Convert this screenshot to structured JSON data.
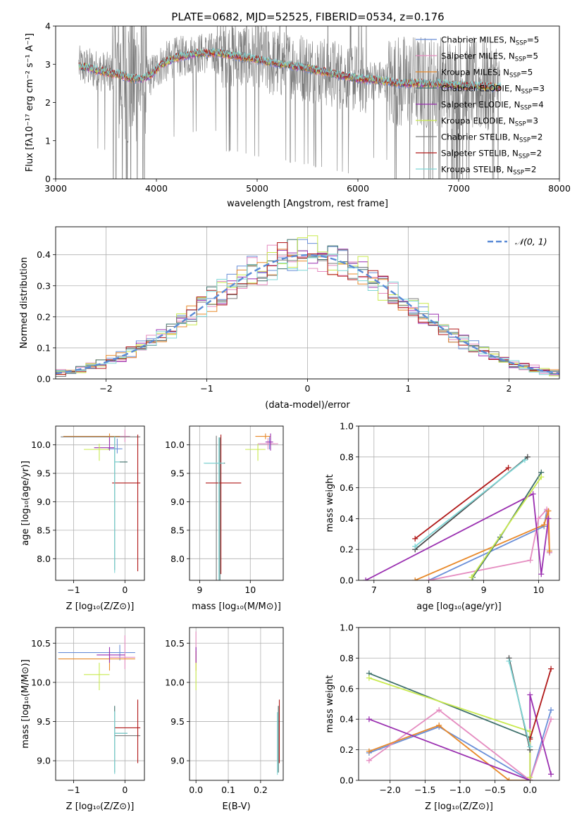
{
  "figure_title": "PLATE=0682, MJD=52525, FIBERID=0534, z=0.176",
  "fit_colors": [
    "#6a8fd8",
    "#e58cc0",
    "#e8892a",
    "#3d6f6a",
    "#9a2fb0",
    "#c9ea4e",
    "#7a7a7a",
    "#b01818",
    "#7fd6d6"
  ],
  "chart_data": [
    {
      "id": "spectrum",
      "type": "line",
      "title": "PLATE=0682, MJD=52525, FIBERID=0534, z=0.176",
      "xlabel": "wavelength [Angstrom, rest frame]",
      "ylabel": "Flux [fλ10⁻¹⁷ erg cm⁻² s⁻¹ A⁻¹]",
      "xlim": [
        3000,
        8000
      ],
      "ylim": [
        0,
        4
      ],
      "xticks": [
        "3000",
        "4000",
        "5000",
        "6000",
        "7000",
        "8000"
      ],
      "yticks": [
        "0",
        "1",
        "2",
        "3",
        "4"
      ],
      "legend_position": "top-right",
      "series": [
        {
          "name": "Chabrier MILES, Nₛₛₚ=5",
          "legend": "Chabrier MILES, N",
          "sub": "SSP",
          "eq": "=5",
          "color": "#6a8fd8"
        },
        {
          "name": "Salpeter MILES, Nₛₛₚ=5",
          "legend": "Salpeter MILES, N",
          "sub": "SSP",
          "eq": "=5",
          "color": "#e58cc0"
        },
        {
          "name": "Kroupa MILES, Nₛₛₚ=5",
          "legend": "Kroupa MILES, N",
          "sub": "SSP",
          "eq": "=5",
          "color": "#e8892a"
        },
        {
          "name": "Chabrier ELODIE, Nₛₛₚ=3",
          "legend": "Chabrier ELODIE, N",
          "sub": "SSP",
          "eq": "=3",
          "color": "#3d6f6a"
        },
        {
          "name": "Salpeter ELODIE, Nₛₛₚ=4",
          "legend": "Salpeter ELODIE, N",
          "sub": "SSP",
          "eq": "=4",
          "color": "#9a2fb0"
        },
        {
          "name": "Kroupa ELODIE, Nₛₛₚ=3",
          "legend": "Kroupa ELODIE, N",
          "sub": "SSP",
          "eq": "=3",
          "color": "#c9ea4e"
        },
        {
          "name": "Chabrier STELIB, Nₛₛₚ=2",
          "legend": "Chabrier STELIB, N",
          "sub": "SSP",
          "eq": "=2",
          "color": "#7a7a7a"
        },
        {
          "name": "Salpeter STELIB, Nₛₛₚ=2",
          "legend": "Salpeter STELIB, N",
          "sub": "SSP",
          "eq": "=2",
          "color": "#b01818"
        },
        {
          "name": "Kroupa STELIB, Nₛₛₚ=2",
          "legend": "Kroupa STELIB, N",
          "sub": "SSP",
          "eq": "=2",
          "color": "#7fd6d6"
        }
      ],
      "continuum": {
        "x": [
          3230,
          3300,
          3450,
          3550,
          3650,
          3750,
          3850,
          3950,
          4050,
          4200,
          4400,
          4600,
          4800,
          5000,
          5200,
          5500,
          5800,
          6000,
          6200,
          6400,
          6600,
          6800,
          7000,
          7200,
          7400
        ],
        "y": [
          2.95,
          2.92,
          2.82,
          2.76,
          2.72,
          2.62,
          2.62,
          2.72,
          3.0,
          3.18,
          3.28,
          3.3,
          3.22,
          3.12,
          3.02,
          2.9,
          2.72,
          2.62,
          2.58,
          2.5,
          2.5,
          2.48,
          2.45,
          2.42,
          2.4
        ]
      },
      "data_range": [
        3230,
        7420
      ],
      "grid": false
    },
    {
      "id": "residuals",
      "type": "histogram",
      "xlabel": "(data-model)/error",
      "ylabel": "Normed distribution",
      "xlim": [
        -2.5,
        2.5
      ],
      "ylim": [
        0,
        0.49
      ],
      "xticks": [
        "−2",
        "−1",
        "0",
        "1",
        "2"
      ],
      "yticks": [
        "0.0",
        "0.1",
        "0.2",
        "0.3",
        "0.4"
      ],
      "legend": "𝒩(0, 1)",
      "legend_color": "#5a8ad6",
      "bin_width": 0.1,
      "grid": true
    },
    {
      "id": "age_vs_z",
      "type": "errorbar",
      "xlabel": "Z [log₁₀(Z/Z⊙)]",
      "ylabel": "age  [log₁₀(age/yr)]",
      "xlim": [
        -1.35,
        0.38
      ],
      "ylim": [
        7.62,
        10.33
      ],
      "xticks": [
        "−1",
        "0"
      ],
      "yticks": [
        "8.0",
        "8.5",
        "9.0",
        "9.5",
        "10.0"
      ],
      "points": [
        {
          "x": -0.15,
          "y": 9.93,
          "xe": [
            0.18,
            0.1
          ],
          "ye": [
            0.08,
            0.18
          ],
          "c": "#6a8fd8"
        },
        {
          "x": 0.0,
          "y": 10.15,
          "xe": [
            0.3,
            0.1
          ],
          "ye": [
            0.1,
            0.12
          ],
          "c": "#e58cc0"
        },
        {
          "x": -0.3,
          "y": 10.15,
          "xe": [
            0.9,
            0.2
          ],
          "ye": [
            0.12,
            0.05
          ],
          "c": "#e8892a"
        },
        {
          "x": -0.2,
          "y": 9.7,
          "xe": [
            0.0,
            0.25
          ],
          "ye": [
            1.9,
            0.45
          ],
          "c": "#3d6f6a"
        },
        {
          "x": -0.3,
          "y": 9.95,
          "xe": [
            0.3,
            0.1
          ],
          "ye": [
            0.05,
            0.18
          ],
          "c": "#9a2fb0"
        },
        {
          "x": -0.5,
          "y": 9.92,
          "xe": [
            0.3,
            0.2
          ],
          "ye": [
            0.2,
            0.1
          ],
          "c": "#c9ea4e"
        },
        {
          "x": 0.25,
          "y": 10.14,
          "xe": [
            1.5,
            0.05
          ],
          "ye": [
            0.02,
            0.02
          ],
          "c": "#7a7a7a"
        },
        {
          "x": 0.25,
          "y": 9.33,
          "xe": [
            0.5,
            0.05
          ],
          "ye": [
            1.55,
            0.85
          ],
          "c": "#b01818"
        },
        {
          "x": -0.2,
          "y": 9.7,
          "xe": [
            0.0,
            0.1
          ],
          "ye": [
            1.95,
            0.45
          ],
          "c": "#7fd6d6"
        }
      ],
      "grid": true
    },
    {
      "id": "age_vs_mass",
      "type": "errorbar",
      "xlabel": "mass [log₁₀(M/M⊙)]",
      "ylabel": "",
      "xlim": [
        8.8,
        10.65
      ],
      "ylim": [
        7.62,
        10.33
      ],
      "xticks": [
        "9",
        "10"
      ],
      "yticks": [
        "8.0",
        "8.5",
        "9.0",
        "9.5",
        "10.0"
      ],
      "points": [
        {
          "x": 10.38,
          "y": 10.02,
          "xe": [
            0.2,
            0.1
          ],
          "ye": [
            0.1,
            0.12
          ],
          "c": "#6a8fd8"
        },
        {
          "x": 10.35,
          "y": 10.02,
          "xe": [
            0.2,
            0.2
          ],
          "ye": [
            0.1,
            0.1
          ],
          "c": "#e58cc0"
        },
        {
          "x": 10.3,
          "y": 10.15,
          "xe": [
            0.2,
            0.1
          ],
          "ye": [
            0.05,
            0.05
          ],
          "c": "#e8892a"
        },
        {
          "x": 9.4,
          "y": 9.68,
          "xe": [
            0.3,
            0.1
          ],
          "ye": [
            2.3,
            0.45
          ],
          "c": "#3d6f6a"
        },
        {
          "x": 10.4,
          "y": 10.05,
          "xe": [
            0.1,
            0.05
          ],
          "ye": [
            0.15,
            0.15
          ],
          "c": "#9a2fb0"
        },
        {
          "x": 10.15,
          "y": 9.92,
          "xe": [
            0.25,
            0.15
          ],
          "ye": [
            0.2,
            0.1
          ],
          "c": "#c9ea4e"
        },
        {
          "x": 9.33,
          "y": 10.14,
          "xe": [
            0.0,
            0.0
          ],
          "ye": [
            2.75,
            0.02
          ],
          "c": "#7a7a7a"
        },
        {
          "x": 9.42,
          "y": 9.33,
          "xe": [
            0.3,
            0.4
          ],
          "ye": [
            1.6,
            0.85
          ],
          "c": "#b01818"
        },
        {
          "x": 9.38,
          "y": 9.68,
          "xe": [
            0.3,
            0.1
          ],
          "ye": [
            2.3,
            0.45
          ],
          "c": "#7fd6d6"
        }
      ],
      "grid": true
    },
    {
      "id": "massweight_vs_age",
      "type": "line",
      "xlabel": "age  [log₁₀(age/yr)]",
      "ylabel": "mass weight",
      "xlim": [
        6.72,
        10.38
      ],
      "ylim": [
        0,
        1
      ],
      "xticks": [
        "7",
        "8",
        "9",
        "10"
      ],
      "yticks": [
        "0.0",
        "0.2",
        "0.4",
        "0.6",
        "0.8",
        "1.0"
      ],
      "series": [
        {
          "c": "#6a8fd8",
          "pts": [
            [
              8.0,
              0.0
            ],
            [
              10.1,
              0.35
            ],
            [
              10.15,
              0.45
            ],
            [
              10.2,
              0.18
            ]
          ]
        },
        {
          "c": "#e58cc0",
          "pts": [
            [
              8.0,
              0.0
            ],
            [
              9.85,
              0.13
            ],
            [
              10.0,
              0.4
            ],
            [
              10.15,
              0.46
            ],
            [
              10.2,
              0.18
            ]
          ]
        },
        {
          "c": "#e8892a",
          "pts": [
            [
              7.75,
              0.0
            ],
            [
              10.1,
              0.36
            ],
            [
              10.18,
              0.45
            ],
            [
              10.2,
              0.19
            ]
          ]
        },
        {
          "c": "#3d6f6a",
          "pts": [
            [
              8.8,
              0.02
            ],
            [
              9.3,
              0.28
            ],
            [
              10.05,
              0.7
            ]
          ]
        },
        {
          "c": "#9a2fb0",
          "pts": [
            [
              6.85,
              0.0
            ],
            [
              9.9,
              0.56
            ],
            [
              10.05,
              0.04
            ],
            [
              10.18,
              0.4
            ]
          ]
        },
        {
          "c": "#c9ea4e",
          "pts": [
            [
              8.78,
              0.02
            ],
            [
              10.05,
              0.67
            ]
          ]
        },
        {
          "c": "#4a4a4a",
          "pts": [
            [
              7.75,
              0.2
            ],
            [
              9.8,
              0.8
            ]
          ]
        },
        {
          "c": "#b01818",
          "pts": [
            [
              7.75,
              0.27
            ],
            [
              9.45,
              0.73
            ]
          ]
        },
        {
          "c": "#7fd6d6",
          "pts": [
            [
              7.75,
              0.22
            ],
            [
              9.75,
              0.78
            ]
          ]
        }
      ],
      "grid": true
    },
    {
      "id": "mass_vs_z",
      "type": "errorbar",
      "xlabel": "Z [log₁₀(Z/Z⊙)]",
      "ylabel": "mass [log₁₀(M/M⊙)]",
      "xlim": [
        -1.35,
        0.38
      ],
      "ylim": [
        8.75,
        10.7
      ],
      "xticks": [
        "−1",
        "0"
      ],
      "yticks": [
        "9.0",
        "9.5",
        "10.0",
        "10.5"
      ],
      "points": [
        {
          "x": -0.1,
          "y": 10.38,
          "xe": [
            1.2,
            0.3
          ],
          "ye": [
            0.1,
            0.1
          ],
          "c": "#6a8fd8"
        },
        {
          "x": 0.0,
          "y": 10.32,
          "xe": [
            0.3,
            0.2
          ],
          "ye": [
            0.15,
            0.28
          ],
          "c": "#e58cc0"
        },
        {
          "x": -0.3,
          "y": 10.3,
          "xe": [
            1.0,
            0.5
          ],
          "ye": [
            0.15,
            0.1
          ],
          "c": "#e8892a"
        },
        {
          "x": -0.2,
          "y": 9.35,
          "xe": [
            0.0,
            0.25
          ],
          "ye": [
            0.5,
            0.35
          ],
          "c": "#3d6f6a"
        },
        {
          "x": -0.3,
          "y": 10.35,
          "xe": [
            0.25,
            0.3
          ],
          "ye": [
            0.1,
            0.1
          ],
          "c": "#9a2fb0"
        },
        {
          "x": -0.5,
          "y": 10.1,
          "xe": [
            0.3,
            0.2
          ],
          "ye": [
            0.2,
            0.15
          ],
          "c": "#c9ea4e"
        },
        {
          "x": 0.25,
          "y": 9.32,
          "xe": [
            0.45,
            0.05
          ],
          "ye": [
            0.02,
            0.02
          ],
          "c": "#7a7a7a"
        },
        {
          "x": 0.25,
          "y": 9.42,
          "xe": [
            0.45,
            0.05
          ],
          "ye": [
            0.45,
            0.36
          ],
          "c": "#b01818"
        },
        {
          "x": -0.2,
          "y": 9.35,
          "xe": [
            0.0,
            0.25
          ],
          "ye": [
            0.52,
            0.28
          ],
          "c": "#7fd6d6"
        }
      ],
      "grid": true
    },
    {
      "id": "mass_vs_ebv",
      "type": "errorbar",
      "xlabel": "E(B-V)",
      "ylabel": "",
      "xlim": [
        -0.02,
        0.27
      ],
      "ylim": [
        8.75,
        10.7
      ],
      "xticks": [
        "0.0",
        "0.1",
        "0.2"
      ],
      "yticks": [
        "9.0",
        "9.5",
        "10.0",
        "10.5"
      ],
      "points": [
        {
          "x": 0.0,
          "y": 10.35,
          "xe": [
            0,
            0
          ],
          "ye": [
            0.1,
            0.1
          ],
          "c": "#6a8fd8"
        },
        {
          "x": 0.0,
          "y": 10.35,
          "xe": [
            0,
            0
          ],
          "ye": [
            0.2,
            0.3
          ],
          "c": "#e58cc0"
        },
        {
          "x": 0.0,
          "y": 10.3,
          "xe": [
            0,
            0
          ],
          "ye": [
            0.15,
            0.1
          ],
          "c": "#e8892a"
        },
        {
          "x": 0.0,
          "y": 10.1,
          "xe": [
            0,
            0
          ],
          "ye": [
            0.2,
            0.15
          ],
          "c": "#c9ea4e"
        },
        {
          "x": 0.0,
          "y": 10.35,
          "xe": [
            0,
            0
          ],
          "ye": [
            0.1,
            0.1
          ],
          "c": "#9a2fb0"
        },
        {
          "x": 0.255,
          "y": 9.35,
          "xe": [
            0,
            0
          ],
          "ye": [
            0.5,
            0.35
          ],
          "c": "#3d6f6a"
        },
        {
          "x": 0.258,
          "y": 9.42,
          "xe": [
            0,
            0
          ],
          "ye": [
            0.45,
            0.36
          ],
          "c": "#b01818"
        },
        {
          "x": 0.252,
          "y": 9.32,
          "xe": [
            0,
            0
          ],
          "ye": [
            0.5,
            0.3
          ],
          "c": "#7fd6d6"
        }
      ],
      "grid": true
    },
    {
      "id": "massweight_vs_z",
      "type": "line",
      "xlabel": "Z [log₁₀(Z/Z⊙)]",
      "ylabel": "mass weight",
      "xlim": [
        -2.45,
        0.42
      ],
      "ylim": [
        0,
        1
      ],
      "xticks": [
        "−2.0",
        "−1.5",
        "−1.0",
        "−0.5",
        "0.0"
      ],
      "yticks": [
        "0.0",
        "0.2",
        "0.4",
        "0.6",
        "0.8",
        "1.0"
      ],
      "series": [
        {
          "c": "#6a8fd8",
          "pts": [
            [
              -2.3,
              0.18
            ],
            [
              -1.3,
              0.35
            ],
            [
              0.0,
              0.0
            ],
            [
              0.3,
              0.46
            ]
          ]
        },
        {
          "c": "#e58cc0",
          "pts": [
            [
              -2.3,
              0.13
            ],
            [
              -1.3,
              0.46
            ],
            [
              0.0,
              0.0
            ],
            [
              0.3,
              0.4
            ]
          ]
        },
        {
          "c": "#e8892a",
          "pts": [
            [
              -2.3,
              0.19
            ],
            [
              -1.3,
              0.36
            ],
            [
              -0.3,
              0.0
            ],
            [
              0.0,
              0.0
            ]
          ]
        },
        {
          "c": "#3d6f6a",
          "pts": [
            [
              -2.3,
              0.7
            ],
            [
              0.0,
              0.28
            ],
            [
              0.0,
              0.2
            ]
          ]
        },
        {
          "c": "#9a2fb0",
          "pts": [
            [
              -2.3,
              0.4
            ],
            [
              0.0,
              0.0
            ],
            [
              0.0,
              0.56
            ],
            [
              0.3,
              0.04
            ]
          ]
        },
        {
          "c": "#c9ea4e",
          "pts": [
            [
              -2.3,
              0.67
            ],
            [
              0.0,
              0.32
            ],
            [
              0.0,
              0.02
            ]
          ]
        },
        {
          "c": "#4a4a4a",
          "pts": [
            [
              -0.3,
              0.8
            ],
            [
              0.0,
              0.2
            ]
          ]
        },
        {
          "c": "#b01818",
          "pts": [
            [
              0.0,
              0.27
            ],
            [
              0.3,
              0.73
            ]
          ]
        },
        {
          "c": "#7fd6d6",
          "pts": [
            [
              -0.3,
              0.78
            ],
            [
              0.0,
              0.22
            ]
          ]
        }
      ],
      "grid": true
    }
  ]
}
